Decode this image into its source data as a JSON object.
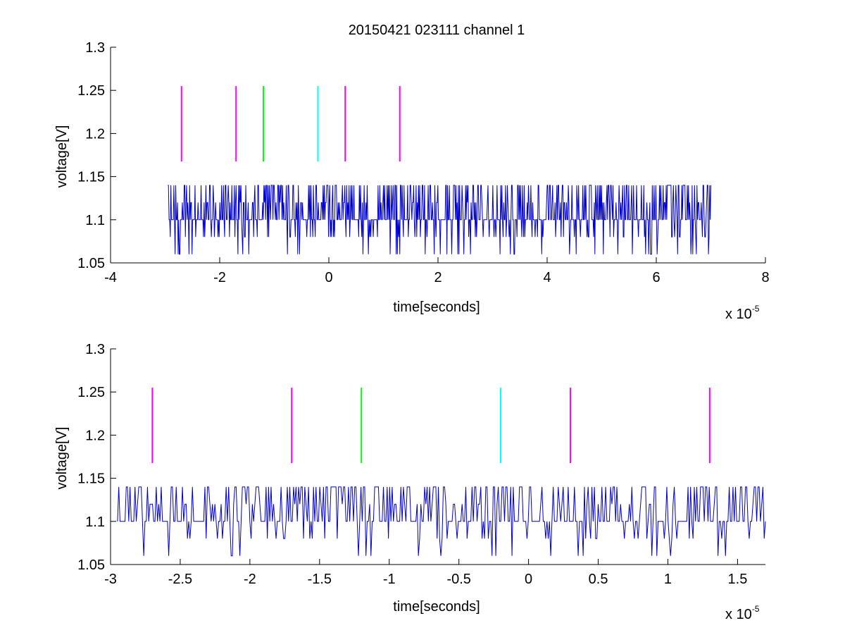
{
  "figure": {
    "title": "20150421 023111 channel 1"
  },
  "colors": {
    "trace": "#0000cc",
    "magenta": "#ff00ff",
    "green": "#00ff00",
    "cyan": "#00ffff",
    "axis": "#000000"
  },
  "chart_data": [
    {
      "type": "line",
      "title": "20150421 023111 channel 1",
      "xlabel": "time[seconds]",
      "ylabel": "voltage[V]",
      "x_multiplier_label": "x 10",
      "x_multiplier_exp": "-5",
      "xlim": [
        -4,
        8
      ],
      "ylim": [
        1.05,
        1.3
      ],
      "x_ticks": [
        -4,
        -2,
        0,
        2,
        4,
        6,
        8
      ],
      "x_tick_labels": [
        "-4",
        "-2",
        "0",
        "2",
        "4",
        "6",
        "8"
      ],
      "y_ticks": [
        1.05,
        1.1,
        1.15,
        1.2,
        1.25,
        1.3
      ],
      "y_tick_labels": [
        "1.05",
        "1.1",
        "1.15",
        "1.2",
        "1.25",
        "1.3"
      ],
      "grid": false,
      "series": [
        {
          "values_x_range": [
            -2.95,
            7.0
          ],
          "levels": [
            1.06,
            1.08,
            1.1,
            1.12,
            1.14
          ],
          "description_only": false
        }
      ],
      "markers": [
        {
          "x": -2.7,
          "y0": 1.1675,
          "y1": 1.255,
          "color": "magenta"
        },
        {
          "x": -1.7,
          "y0": 1.1675,
          "y1": 1.255,
          "color": "magenta"
        },
        {
          "x": -1.2,
          "y0": 1.1675,
          "y1": 1.255,
          "color": "green"
        },
        {
          "x": -0.2,
          "y0": 1.1675,
          "y1": 1.255,
          "color": "cyan"
        },
        {
          "x": 0.3,
          "y0": 1.1675,
          "y1": 1.255,
          "color": "magenta"
        },
        {
          "x": 1.3,
          "y0": 1.1675,
          "y1": 1.255,
          "color": "magenta"
        }
      ]
    },
    {
      "type": "line",
      "xlabel": "time[seconds]",
      "ylabel": "voltage[V]",
      "x_multiplier_label": "x 10",
      "x_multiplier_exp": "-5",
      "xlim": [
        -3.0,
        1.7
      ],
      "ylim": [
        1.05,
        1.3
      ],
      "x_ticks": [
        -3,
        -2.5,
        -2,
        -1.5,
        -1,
        -0.5,
        0,
        0.5,
        1,
        1.5
      ],
      "x_tick_labels": [
        "-3",
        "-2.5",
        "-2",
        "-1.5",
        "-1",
        "-0.5",
        "0",
        "0.5",
        "1",
        "1.5"
      ],
      "y_ticks": [
        1.05,
        1.1,
        1.15,
        1.2,
        1.25,
        1.3
      ],
      "y_tick_labels": [
        "1.05",
        "1.1",
        "1.15",
        "1.2",
        "1.25",
        "1.3"
      ],
      "grid": false,
      "series": [
        {
          "values_x_range": [
            -2.95,
            1.7
          ],
          "levels": [
            1.06,
            1.08,
            1.1,
            1.12,
            1.14
          ],
          "description_only": false
        }
      ],
      "markers": [
        {
          "x": -2.7,
          "y0": 1.1675,
          "y1": 1.255,
          "color": "magenta"
        },
        {
          "x": -1.7,
          "y0": 1.1675,
          "y1": 1.255,
          "color": "magenta"
        },
        {
          "x": -1.2,
          "y0": 1.1675,
          "y1": 1.255,
          "color": "green"
        },
        {
          "x": -0.2,
          "y0": 1.1675,
          "y1": 1.255,
          "color": "cyan"
        },
        {
          "x": 0.3,
          "y0": 1.1675,
          "y1": 1.255,
          "color": "magenta"
        },
        {
          "x": 1.3,
          "y0": 1.1675,
          "y1": 1.255,
          "color": "magenta"
        }
      ]
    }
  ]
}
